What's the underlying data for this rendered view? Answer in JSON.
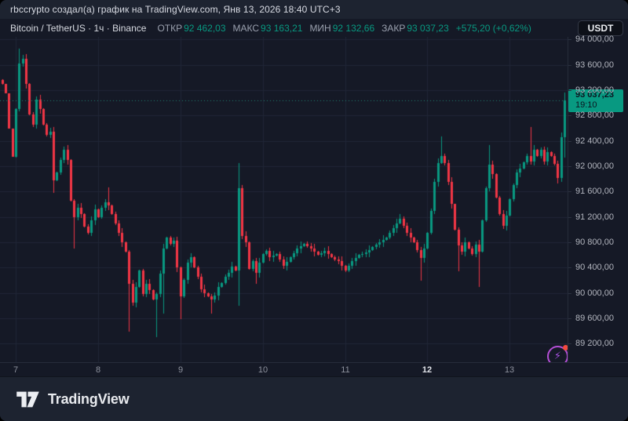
{
  "meta": {
    "attribution": "rbccrypto создал(а) график на TradingView.com, Янв 13, 2026 18:40 UTC+3"
  },
  "symbol_bar": {
    "title": "Bitcoin / TetherUS · 1ч · Binance",
    "ohlc": [
      {
        "label": "ОТКР",
        "value": "92 462,03"
      },
      {
        "label": "МАКС",
        "value": "93 163,21"
      },
      {
        "label": "МИН",
        "value": "92 132,66"
      },
      {
        "label": "ЗАКР",
        "value": "93 037,23"
      }
    ],
    "change": "+575,20 (+0,62%)",
    "currency_button": "USDT"
  },
  "price_scale": {
    "price_label": {
      "price": "93 037,23",
      "countdown": "19:10"
    }
  },
  "footer": {
    "brand": "TradingView"
  },
  "colors": {
    "background": "#151926",
    "panel": "#1d2330",
    "grid": "#202636",
    "up": "#089981",
    "down": "#f23645",
    "axis_text": "#b2b5be",
    "price_line": "#1e8573",
    "price_label_bg": "#089981",
    "flash_icon": "#b44fd6"
  },
  "chart_data": {
    "type": "candlestick",
    "title": "Bitcoin / TetherUS, 1ч, Binance",
    "interval": "1h",
    "ylim": [
      88900,
      94060
    ],
    "grid": true,
    "y_ticks": [
      {
        "v": 94000,
        "t": "94 000,00"
      },
      {
        "v": 93600,
        "t": "93 600,00"
      },
      {
        "v": 93200,
        "t": "93 200,00"
      },
      {
        "v": 92800,
        "t": "92 800,00"
      },
      {
        "v": 92400,
        "t": "92 400,00"
      },
      {
        "v": 92000,
        "t": "92 000,00"
      },
      {
        "v": 91600,
        "t": "91 600,00"
      },
      {
        "v": 91200,
        "t": "91 200,00"
      },
      {
        "v": 90800,
        "t": "90 800,00"
      },
      {
        "v": 90400,
        "t": "90 400,00"
      },
      {
        "v": 90000,
        "t": "90 000,00"
      },
      {
        "v": 89600,
        "t": "89 600,00"
      },
      {
        "v": 89200,
        "t": "89 200,00"
      }
    ],
    "x_days": [
      {
        "label": "7",
        "hour": 0,
        "strong": false
      },
      {
        "label": "8",
        "hour": 24,
        "strong": false
      },
      {
        "label": "9",
        "hour": 48,
        "strong": false
      },
      {
        "label": "10",
        "hour": 72,
        "strong": false
      },
      {
        "label": "11",
        "hour": 96,
        "strong": false
      },
      {
        "label": "12",
        "hour": 120,
        "strong": true
      },
      {
        "label": "13",
        "hour": 144,
        "strong": false
      }
    ],
    "last_bar": {
      "open": 92462.03,
      "high": 93163.21,
      "low": 92132.66,
      "close": 93037.23,
      "change": "+575,20",
      "change_pct": "+0,62%"
    },
    "current_price": 93037.23,
    "first_hour": -4,
    "last_hour": 160,
    "anchors": [
      [
        -4,
        93300
      ],
      [
        -3,
        93150
      ],
      [
        -2,
        92600
      ],
      [
        -1,
        92150
      ],
      [
        0,
        92900
      ],
      [
        1,
        93620
      ],
      [
        2,
        93700
      ],
      [
        3,
        93300
      ],
      [
        4,
        92820
      ],
      [
        5,
        92650
      ],
      [
        6,
        93050
      ],
      [
        7,
        92900
      ],
      [
        8,
        92650
      ],
      [
        9,
        92500
      ],
      [
        10,
        92550
      ],
      [
        11,
        91780
      ],
      [
        12,
        91900
      ],
      [
        13,
        92100
      ],
      [
        14,
        92260
      ],
      [
        15,
        92100
      ],
      [
        16,
        91450
      ],
      [
        17,
        91200
      ],
      [
        18,
        91350
      ],
      [
        19,
        91250
      ],
      [
        20,
        91050
      ],
      [
        21,
        90950
      ],
      [
        22,
        91150
      ],
      [
        23,
        91320
      ],
      [
        24,
        91200
      ],
      [
        25,
        91350
      ],
      [
        26,
        91430
      ],
      [
        27,
        91380
      ],
      [
        28,
        91250
      ],
      [
        29,
        91100
      ],
      [
        30,
        90950
      ],
      [
        31,
        90800
      ],
      [
        32,
        90650
      ],
      [
        33,
        90150
      ],
      [
        34,
        89850
      ],
      [
        35,
        90100
      ],
      [
        36,
        90350
      ],
      [
        37,
        89980
      ],
      [
        38,
        90150
      ],
      [
        39,
        90050
      ],
      [
        40,
        89900
      ],
      [
        41,
        89980
      ],
      [
        42,
        90300
      ],
      [
        43,
        90700
      ],
      [
        44,
        90870
      ],
      [
        45,
        90780
      ],
      [
        46,
        90820
      ],
      [
        47,
        90400
      ],
      [
        48,
        89950
      ],
      [
        49,
        90200
      ],
      [
        50,
        90480
      ],
      [
        51,
        90560
      ],
      [
        52,
        90400
      ],
      [
        53,
        90250
      ],
      [
        54,
        90060
      ],
      [
        55,
        90000
      ],
      [
        56,
        89950
      ],
      [
        57,
        89900
      ],
      [
        58,
        89960
      ],
      [
        59,
        90100
      ],
      [
        60,
        90160
      ],
      [
        61,
        90260
      ],
      [
        62,
        90320
      ],
      [
        63,
        90420
      ],
      [
        64,
        90350
      ],
      [
        65,
        91650
      ],
      [
        66,
        90900
      ],
      [
        67,
        90800
      ],
      [
        68,
        90380
      ],
      [
        69,
        90500
      ],
      [
        70,
        90320
      ],
      [
        71,
        90480
      ],
      [
        72,
        90620
      ],
      [
        73,
        90660
      ],
      [
        74,
        90560
      ],
      [
        76,
        90620
      ],
      [
        78,
        90430
      ],
      [
        80,
        90560
      ],
      [
        82,
        90700
      ],
      [
        84,
        90780
      ],
      [
        86,
        90700
      ],
      [
        88,
        90600
      ],
      [
        90,
        90660
      ],
      [
        92,
        90560
      ],
      [
        94,
        90500
      ],
      [
        96,
        90360
      ],
      [
        98,
        90500
      ],
      [
        100,
        90600
      ],
      [
        102,
        90640
      ],
      [
        104,
        90720
      ],
      [
        106,
        90800
      ],
      [
        108,
        90880
      ],
      [
        110,
        91020
      ],
      [
        112,
        91170
      ],
      [
        113,
        91060
      ],
      [
        114,
        90950
      ],
      [
        116,
        90800
      ],
      [
        118,
        90550
      ],
      [
        119,
        90700
      ],
      [
        120,
        90950
      ],
      [
        121,
        91300
      ],
      [
        122,
        91750
      ],
      [
        123,
        92050
      ],
      [
        124,
        92160
      ],
      [
        125,
        92050
      ],
      [
        126,
        91750
      ],
      [
        127,
        91400
      ],
      [
        128,
        91000
      ],
      [
        129,
        90750
      ],
      [
        130,
        90650
      ],
      [
        131,
        90800
      ],
      [
        132,
        90700
      ],
      [
        133,
        90620
      ],
      [
        134,
        90760
      ],
      [
        135,
        90650
      ],
      [
        136,
        91150
      ],
      [
        137,
        91650
      ],
      [
        138,
        92020
      ],
      [
        139,
        91880
      ],
      [
        140,
        91500
      ],
      [
        141,
        91250
      ],
      [
        142,
        91060
      ],
      [
        143,
        91220
      ],
      [
        144,
        91480
      ],
      [
        145,
        91700
      ],
      [
        146,
        91900
      ],
      [
        147,
        91960
      ],
      [
        148,
        92060
      ],
      [
        149,
        92160
      ],
      [
        150,
        92080
      ],
      [
        151,
        92260
      ],
      [
        152,
        92160
      ],
      [
        153,
        92260
      ],
      [
        154,
        92080
      ],
      [
        155,
        92220
      ],
      [
        156,
        92160
      ],
      [
        157,
        92040
      ],
      [
        158,
        91820
      ],
      [
        159,
        92462.03
      ],
      [
        160,
        93037.23
      ]
    ],
    "wick_overrides": [
      [
        1,
        "high",
        93860
      ],
      [
        11,
        "low",
        91580
      ],
      [
        17,
        "low",
        90700
      ],
      [
        27,
        "high",
        91660
      ],
      [
        33,
        "low",
        89390
      ],
      [
        41,
        "low",
        89300
      ],
      [
        43,
        "low",
        89670
      ],
      [
        48,
        "low",
        89590
      ],
      [
        57,
        "low",
        89670
      ],
      [
        65,
        "high",
        92050
      ],
      [
        65,
        "low",
        89800
      ],
      [
        70,
        "low",
        90145
      ],
      [
        96,
        "low",
        90330
      ],
      [
        112,
        "high",
        91240
      ],
      [
        118,
        "low",
        90190
      ],
      [
        124,
        "high",
        92470
      ],
      [
        129,
        "low",
        90340
      ],
      [
        135,
        "low",
        90090
      ],
      [
        138,
        "high",
        92330
      ],
      [
        150,
        "high",
        92620
      ],
      [
        158,
        "low",
        91730
      ],
      [
        160,
        "high",
        93163.21
      ],
      [
        160,
        "low",
        92132.66
      ]
    ]
  }
}
